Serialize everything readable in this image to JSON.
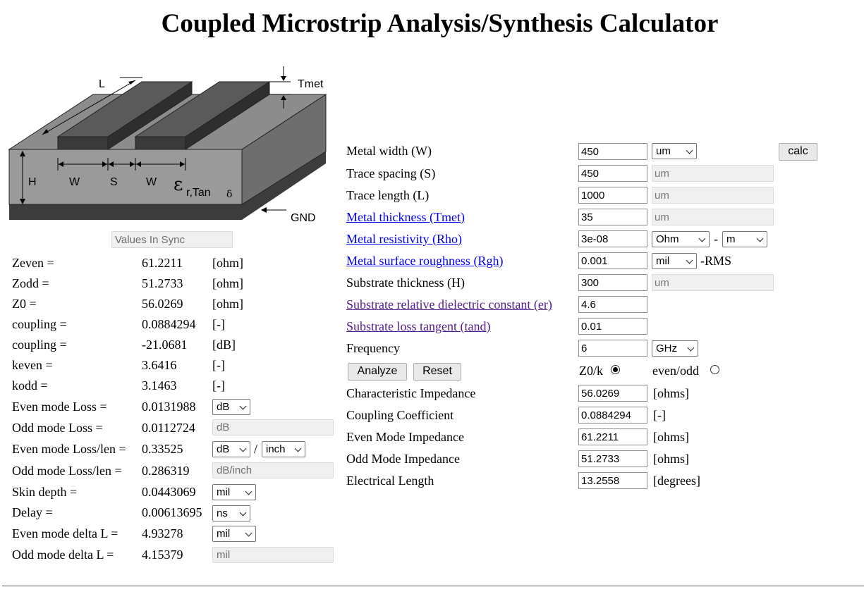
{
  "title": "Coupled Microstrip Analysis/Synthesis Calculator",
  "diagram_labels": {
    "L": "L",
    "Tmet": "Tmet",
    "H": "H",
    "W1": "W",
    "S": "S",
    "W2": "W",
    "epsilon": "ε",
    "er_sub": "r,Tan",
    "delta": "δ",
    "GND": "GND"
  },
  "sync_status": "Values In Sync",
  "results": [
    {
      "label": "Zeven =",
      "value": "61.2211",
      "unit": "[ohm]"
    },
    {
      "label": "Zodd =",
      "value": "51.2733",
      "unit": "[ohm]"
    },
    {
      "label": "Z0 =",
      "value": "56.0269",
      "unit": "[ohm]"
    },
    {
      "label": "coupling =",
      "value": "0.0884294",
      "unit": "[-]"
    },
    {
      "label": "coupling =",
      "value": "-21.0681",
      "unit": "[dB]"
    },
    {
      "label": "keven =",
      "value": "3.6416",
      "unit": "[-]"
    },
    {
      "label": "kodd =",
      "value": "3.1463",
      "unit": "[-]"
    },
    {
      "label": "Even mode Loss =",
      "value": "0.0131988",
      "unit_select": "dB"
    },
    {
      "label": "Odd mode Loss =",
      "value": "0.0112724",
      "unit_disabled": "dB"
    },
    {
      "label": "Even mode Loss/len =",
      "value": "0.33525",
      "unit_select": "dB",
      "unit_sep": "/",
      "unit_select2": "inch"
    },
    {
      "label": "Odd mode Loss/len =",
      "value": "0.286319",
      "unit_disabled": "dB/inch"
    },
    {
      "label": "Skin depth =",
      "value": "0.0443069",
      "unit_select": "mil"
    },
    {
      "label": "Delay =",
      "value": "0.00613695",
      "unit_select": "ns"
    },
    {
      "label": "Even mode delta L =",
      "value": "4.93278",
      "unit_select": "mil"
    },
    {
      "label": "Odd mode delta L =",
      "value": "4.15379",
      "unit_disabled": "mil"
    }
  ],
  "form": {
    "width": {
      "label": "Metal width (W)",
      "value": "450",
      "unit": "um"
    },
    "spacing": {
      "label": "Trace spacing (S)",
      "value": "450",
      "unit": "um"
    },
    "length": {
      "label": "Trace length (L)",
      "value": "1000",
      "unit": "um"
    },
    "tmet": {
      "label": "Metal thickness (Tmet)",
      "value": "35",
      "unit": "um"
    },
    "rho": {
      "label": "Metal resistivity (Rho)",
      "value": "3e-08",
      "unit1": "Ohm",
      "sep": "-",
      "unit2": "m"
    },
    "rough": {
      "label": "Metal surface roughness (Rgh)",
      "value": "0.001",
      "unit": "mil",
      "suffix": "-RMS"
    },
    "subh": {
      "label": "Substrate thickness (H)",
      "value": "300",
      "unit": "um"
    },
    "er": {
      "label": "Substrate relative dielectric constant (er)",
      "value": "4.6"
    },
    "tand": {
      "label": "Substrate loss tangent (tand)",
      "value": "0.01"
    },
    "freq": {
      "label": "Frequency",
      "value": "6",
      "unit": "GHz"
    },
    "calc_button": "calc",
    "analyze_button": "Analyze",
    "reset_button": "Reset",
    "mode_z0k": "Z0/k",
    "mode_evenodd": "even/odd",
    "z0": {
      "label": "Characteristic Impedance",
      "value": "56.0269",
      "unit": "[ohms]"
    },
    "k": {
      "label": "Coupling Coefficient",
      "value": "0.0884294",
      "unit": "[-]"
    },
    "ze": {
      "label": "Even Mode Impedance",
      "value": "61.2211",
      "unit": "[ohms]"
    },
    "zo": {
      "label": "Odd Mode Impedance",
      "value": "51.2733",
      "unit": "[ohms]"
    },
    "elen": {
      "label": "Electrical Length",
      "value": "13.2558",
      "unit": "[degrees]"
    }
  }
}
